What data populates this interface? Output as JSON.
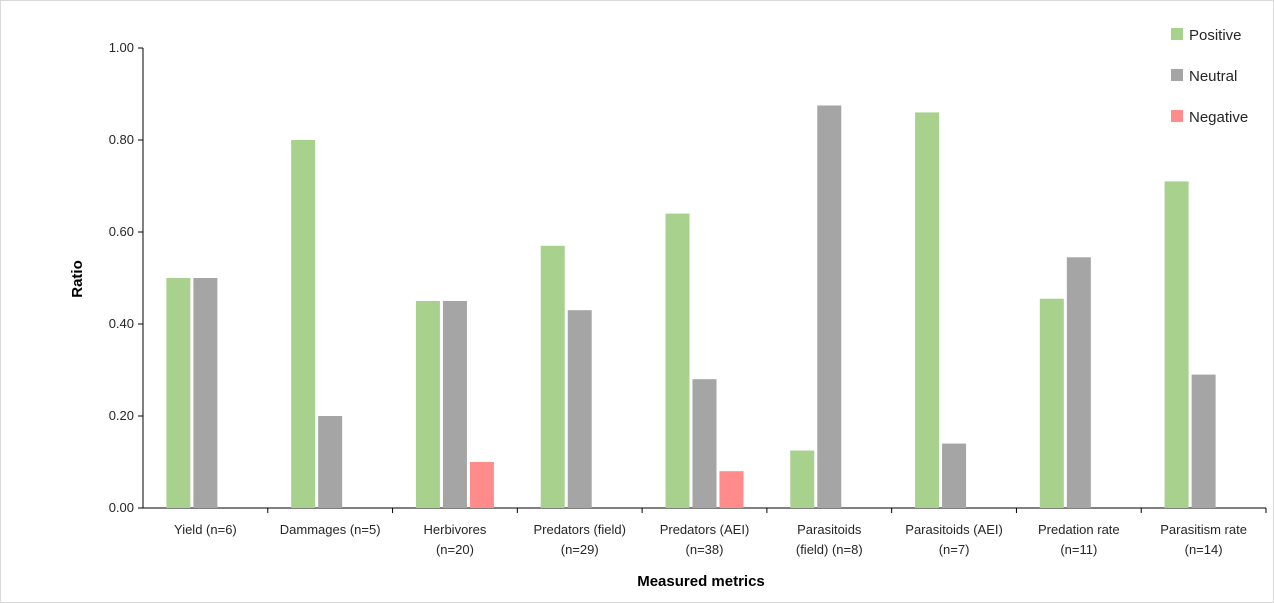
{
  "chart_data": {
    "type": "bar",
    "title": "",
    "xlabel": "Measured metrics",
    "ylabel": "Ratio",
    "ylim": [
      0,
      1
    ],
    "yticks": [
      "0.00",
      "0.20",
      "0.40",
      "0.60",
      "0.80",
      "1.00"
    ],
    "grid": false,
    "legend_position": "top-right",
    "categories": [
      [
        "Yield (n=6)"
      ],
      [
        "Dammages (n=5)"
      ],
      [
        "Herbivores",
        "(n=20)"
      ],
      [
        "Predators (field)",
        "(n=29)"
      ],
      [
        "Predators (AEI)",
        "(n=38)"
      ],
      [
        "Parasitoids",
        "(field) (n=8)"
      ],
      [
        "Parasitoids (AEI)",
        "(n=7)"
      ],
      [
        "Predation rate",
        "(n=11)"
      ],
      [
        "Parasitism rate",
        "(n=14)"
      ]
    ],
    "series": [
      {
        "name": "Positive",
        "color": "#a9d18e",
        "values": [
          0.5,
          0.8,
          0.45,
          0.57,
          0.64,
          0.125,
          0.86,
          0.455,
          0.71
        ]
      },
      {
        "name": "Neutral",
        "color": "#a5a5a5",
        "values": [
          0.5,
          0.2,
          0.45,
          0.43,
          0.28,
          0.875,
          0.14,
          0.545,
          0.29
        ]
      },
      {
        "name": "Negative",
        "color": "#ff8b8b",
        "values": [
          0,
          0,
          0.1,
          0,
          0.08,
          0,
          0,
          0,
          0
        ]
      }
    ]
  }
}
